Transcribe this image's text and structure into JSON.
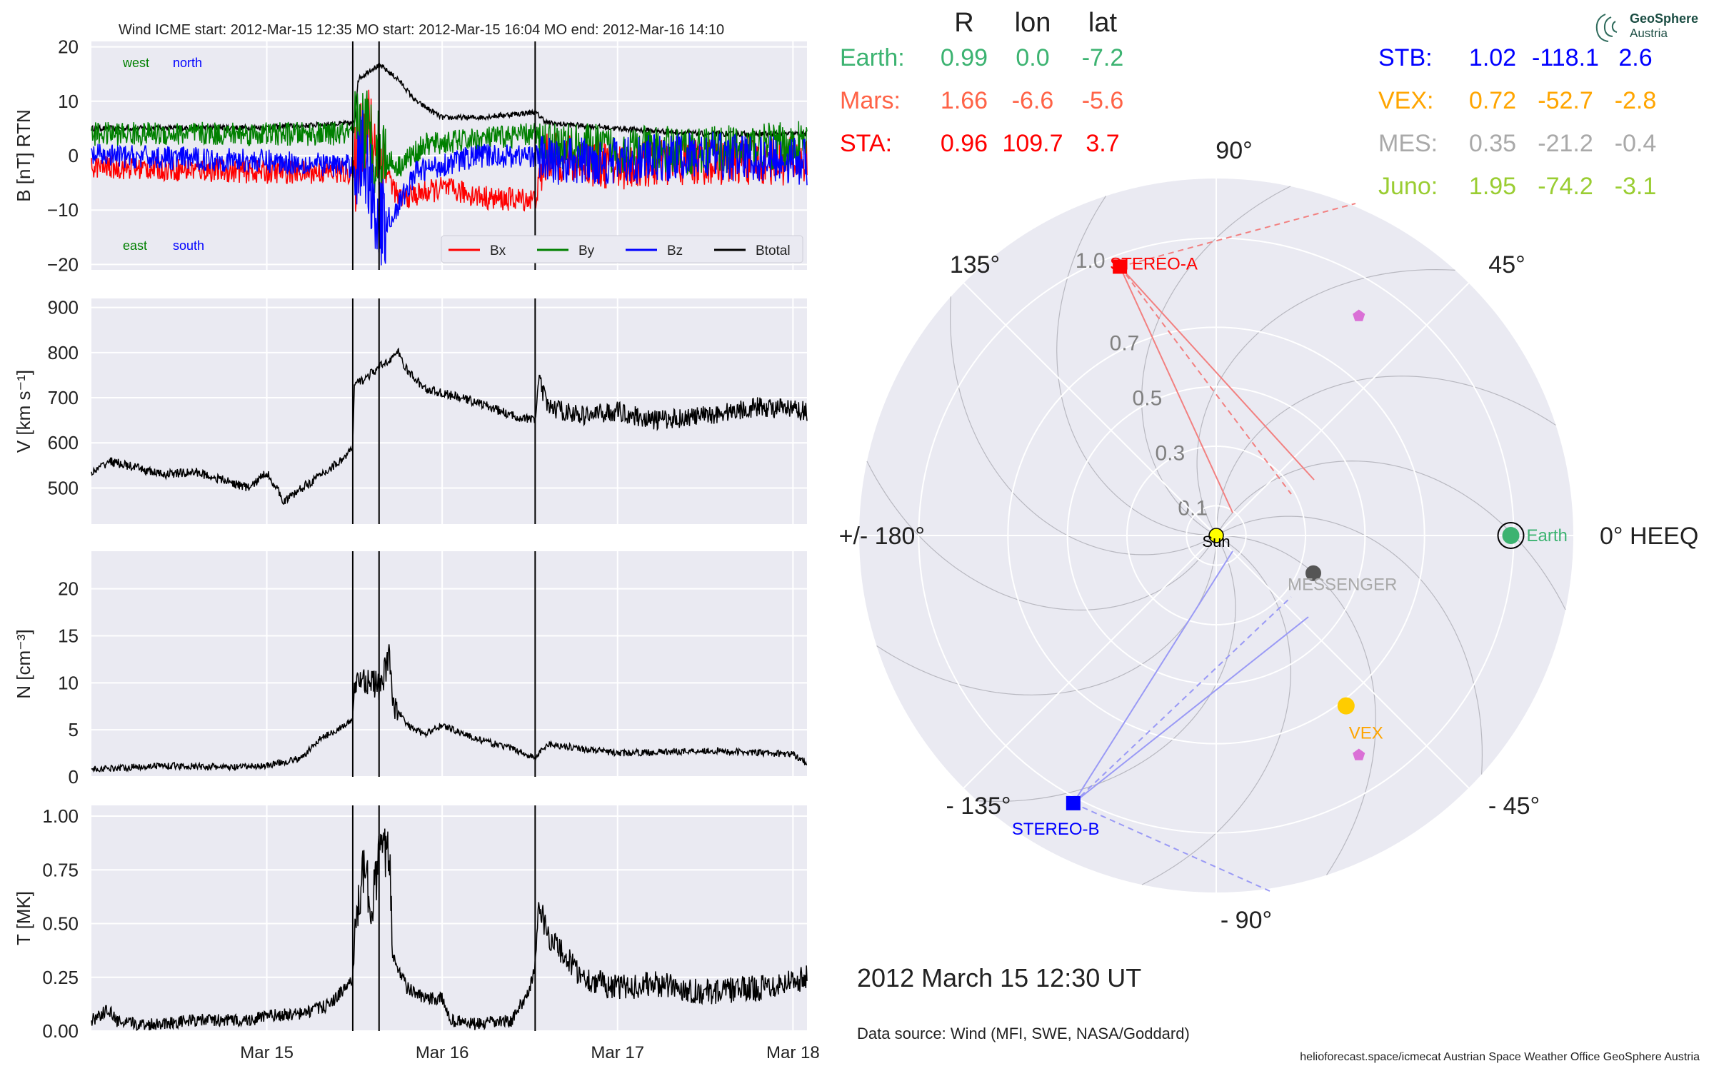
{
  "header": {
    "insitu_title": "Wind    ICME start: 2012-Mar-15 12:35   MO start: 2012-Mar-15 16:04   MO end: 2012-Mar-16 14:10",
    "date_label": "2012 March 15  12:30 UT",
    "data_source": "Data source: Wind (MFI, SWE, NASA/Goddard)",
    "footer_credits": "helioforecast.space/icmecat   Austrian Space Weather Office   GeoSphere Austria",
    "logo_line1": "GeoSphere",
    "logo_line2": "Austria"
  },
  "table": {
    "headers": [
      "R",
      "lon",
      "lat"
    ],
    "left_rows": [
      {
        "name": "Earth:",
        "r": "0.99",
        "lon": "0.0",
        "lat": "-7.2",
        "color": "#3cb371"
      },
      {
        "name": "Mars:",
        "r": "1.66",
        "lon": "-6.6",
        "lat": "-5.6",
        "color": "#ff6347"
      },
      {
        "name": "STA:",
        "r": "0.96",
        "lon": "109.7",
        "lat": "3.7",
        "color": "#ff0000"
      }
    ],
    "right_rows": [
      {
        "name": "STB:",
        "r": "1.02",
        "lon": "-118.1",
        "lat": "2.6",
        "color": "#0000ff"
      },
      {
        "name": "VEX:",
        "r": "0.72",
        "lon": "-52.7",
        "lat": "-2.8",
        "color": "#ffa500"
      },
      {
        "name": "MES:",
        "r": "0.35",
        "lon": "-21.2",
        "lat": "-0.4",
        "color": "#a9a9a9"
      },
      {
        "name": "Juno:",
        "r": "1.95",
        "lon": "-74.2",
        "lat": "-3.1",
        "color": "#9acd32"
      }
    ]
  },
  "chart_data": [
    {
      "type": "line",
      "panel": "magnetic-field",
      "ylabel": "B [nT] RTN",
      "ylim": [
        -21,
        21
      ],
      "yticks": [
        "20",
        "10",
        "0",
        "−10",
        "−20"
      ],
      "ytick_values": [
        20,
        10,
        0,
        -10,
        -20
      ],
      "legend": [
        "Bx",
        "By",
        "Bz",
        "Btotal"
      ],
      "colors": {
        "Bx": "#ff0000",
        "By": "#008000",
        "Bz": "#0000ff",
        "Btotal": "#000000"
      },
      "annotations": {
        "west": "west",
        "north": "north",
        "east": "east",
        "south": "south"
      },
      "series": [
        {
          "name": "Btotal",
          "x": [
            0,
            1.0,
            1.5,
            1.52,
            1.6,
            1.65,
            1.75,
            1.85,
            2.0,
            2.2,
            2.53,
            2.6,
            3.0,
            3.5,
            4.08
          ],
          "y": [
            5,
            5.2,
            6,
            14,
            16,
            16.5,
            14,
            10,
            7,
            7,
            8,
            6,
            5,
            4,
            4
          ]
        },
        {
          "name": "Bx",
          "x": [
            0,
            1.0,
            1.5,
            1.55,
            1.65,
            1.75,
            2.0,
            2.3,
            2.53,
            2.6,
            3.0,
            3.5,
            4.08
          ],
          "y": [
            -2,
            -3,
            -3,
            6,
            0,
            -8,
            -6,
            -8,
            -8,
            0,
            -2,
            -1,
            -1
          ]
        },
        {
          "name": "By",
          "x": [
            0,
            1.0,
            1.5,
            1.55,
            1.65,
            1.75,
            1.9,
            2.2,
            2.53,
            2.6,
            3.0,
            3.5,
            4.08
          ],
          "y": [
            4,
            4,
            4,
            5,
            0,
            -2,
            2,
            3,
            4,
            2,
            1,
            1,
            2
          ]
        },
        {
          "name": "Bz",
          "x": [
            0,
            1.0,
            1.5,
            1.55,
            1.65,
            1.72,
            1.85,
            2.2,
            2.53,
            2.6,
            3.0,
            3.5,
            4.08
          ],
          "y": [
            0,
            -1,
            -2,
            0,
            -13,
            -11,
            -3,
            0,
            0,
            -1,
            -1,
            0,
            -1
          ]
        }
      ]
    },
    {
      "type": "line",
      "panel": "speed",
      "ylabel": "V [km s⁻¹]",
      "ylim": [
        420,
        920
      ],
      "yticks": [
        "900",
        "800",
        "700",
        "600",
        "500"
      ],
      "ytick_values": [
        900,
        800,
        700,
        600,
        500
      ],
      "series": [
        {
          "name": "V",
          "x": [
            0,
            0.1,
            0.2,
            0.4,
            0.6,
            0.9,
            1.0,
            1.1,
            1.2,
            1.35,
            1.45,
            1.49,
            1.5,
            1.55,
            1.65,
            1.75,
            1.8,
            1.9,
            2.0,
            2.2,
            2.4,
            2.53,
            2.55,
            2.6,
            2.8,
            3.0,
            3.2,
            3.5,
            3.8,
            4.08
          ],
          "y": [
            530,
            560,
            550,
            530,
            535,
            500,
            535,
            470,
            500,
            540,
            570,
            590,
            730,
            740,
            770,
            800,
            760,
            720,
            710,
            690,
            660,
            650,
            740,
            680,
            660,
            670,
            650,
            660,
            680,
            670
          ]
        }
      ]
    },
    {
      "type": "line",
      "panel": "density",
      "ylabel": "N [cm⁻³]",
      "ylim": [
        0,
        24
      ],
      "yticks": [
        "20",
        "15",
        "10",
        "5",
        "0"
      ],
      "ytick_values": [
        20,
        15,
        10,
        5,
        0
      ],
      "series": [
        {
          "name": "N",
          "x": [
            0,
            0.2,
            0.4,
            0.6,
            0.8,
            1.0,
            1.2,
            1.3,
            1.4,
            1.49,
            1.5,
            1.55,
            1.65,
            1.7,
            1.72,
            1.8,
            1.9,
            2.0,
            2.2,
            2.4,
            2.53,
            2.6,
            2.8,
            3.0,
            3.5,
            4.0,
            4.08
          ],
          "y": [
            0.8,
            1.0,
            1.2,
            1.1,
            1.0,
            1.2,
            2.0,
            4.0,
            5.0,
            6.0,
            10,
            10.5,
            9.5,
            13,
            8,
            5.5,
            4.5,
            5.5,
            4.0,
            3.0,
            2.0,
            3.5,
            3.0,
            2.5,
            2.8,
            2.4,
            1.5
          ]
        }
      ]
    },
    {
      "type": "line",
      "panel": "temperature",
      "ylabel": "T [MK]",
      "ylim": [
        0,
        1.05
      ],
      "yticks": [
        "1.00",
        "0.75",
        "0.50",
        "0.25",
        "0.00"
      ],
      "ytick_values": [
        1.0,
        0.75,
        0.5,
        0.25,
        0.0
      ],
      "xticks": [
        "Mar 15",
        "Mar 16",
        "Mar 17",
        "Mar 18"
      ],
      "xtick_values": [
        1,
        2,
        3,
        4
      ],
      "series": [
        {
          "name": "T",
          "x": [
            0,
            0.1,
            0.15,
            0.3,
            0.6,
            0.9,
            1.0,
            1.2,
            1.35,
            1.45,
            1.49,
            1.5,
            1.55,
            1.6,
            1.65,
            1.7,
            1.72,
            1.8,
            1.9,
            2.0,
            2.05,
            2.2,
            2.4,
            2.5,
            2.53,
            2.55,
            2.6,
            2.8,
            3.0,
            3.2,
            3.5,
            3.8,
            4.08
          ],
          "y": [
            0.05,
            0.1,
            0.04,
            0.03,
            0.05,
            0.05,
            0.07,
            0.08,
            0.12,
            0.2,
            0.25,
            0.4,
            0.75,
            0.6,
            0.85,
            0.8,
            0.35,
            0.2,
            0.15,
            0.15,
            0.05,
            0.03,
            0.05,
            0.2,
            0.3,
            0.6,
            0.45,
            0.25,
            0.2,
            0.22,
            0.18,
            0.2,
            0.25
          ]
        }
      ]
    },
    {
      "type": "scatter",
      "panel": "polar-orbit-plot",
      "projection": "polar",
      "r_ticks": [
        "0.1",
        "0.3",
        "0.5",
        "0.7",
        "1.0"
      ],
      "r_tick_values": [
        0.1,
        0.3,
        0.5,
        0.7,
        1.0
      ],
      "r_max": 1.2,
      "angle_labels": [
        {
          "text": "90°",
          "angle": 90
        },
        {
          "text": "45°",
          "angle": 45
        },
        {
          "text": "0° HEEQ",
          "angle": 0
        },
        {
          "text": "- 45°",
          "angle": -45
        },
        {
          "text": "- 90°",
          "angle": -90
        },
        {
          "text": "- 135°",
          "angle": -135
        },
        {
          "text": "+/- 180°",
          "angle": 180
        },
        {
          "text": "135°",
          "angle": 135
        }
      ],
      "points": [
        {
          "name": "Sun",
          "r": 0,
          "lon": 0,
          "color": "#ffff00"
        },
        {
          "name": "Earth",
          "r": 0.99,
          "lon": 0.0,
          "color": "#3cb371"
        },
        {
          "name": "STEREO-A",
          "r": 0.96,
          "lon": 109.7,
          "color": "#ff0000"
        },
        {
          "name": "STEREO-B",
          "r": 1.02,
          "lon": -118.1,
          "color": "#0000ff"
        },
        {
          "name": "VEX",
          "r": 0.72,
          "lon": -52.7,
          "color": "#ffcc00"
        },
        {
          "name": "MESSENGER",
          "r": 0.35,
          "lon": -21.2,
          "color": "#555555"
        }
      ],
      "extra_markers": [
        {
          "name": "pentagon-top",
          "r": 0.88,
          "lon": 57,
          "color": "#da70d6"
        },
        {
          "name": "pentagon-bottom",
          "r": 0.88,
          "lon": -57,
          "color": "#da70d6"
        }
      ]
    }
  ]
}
